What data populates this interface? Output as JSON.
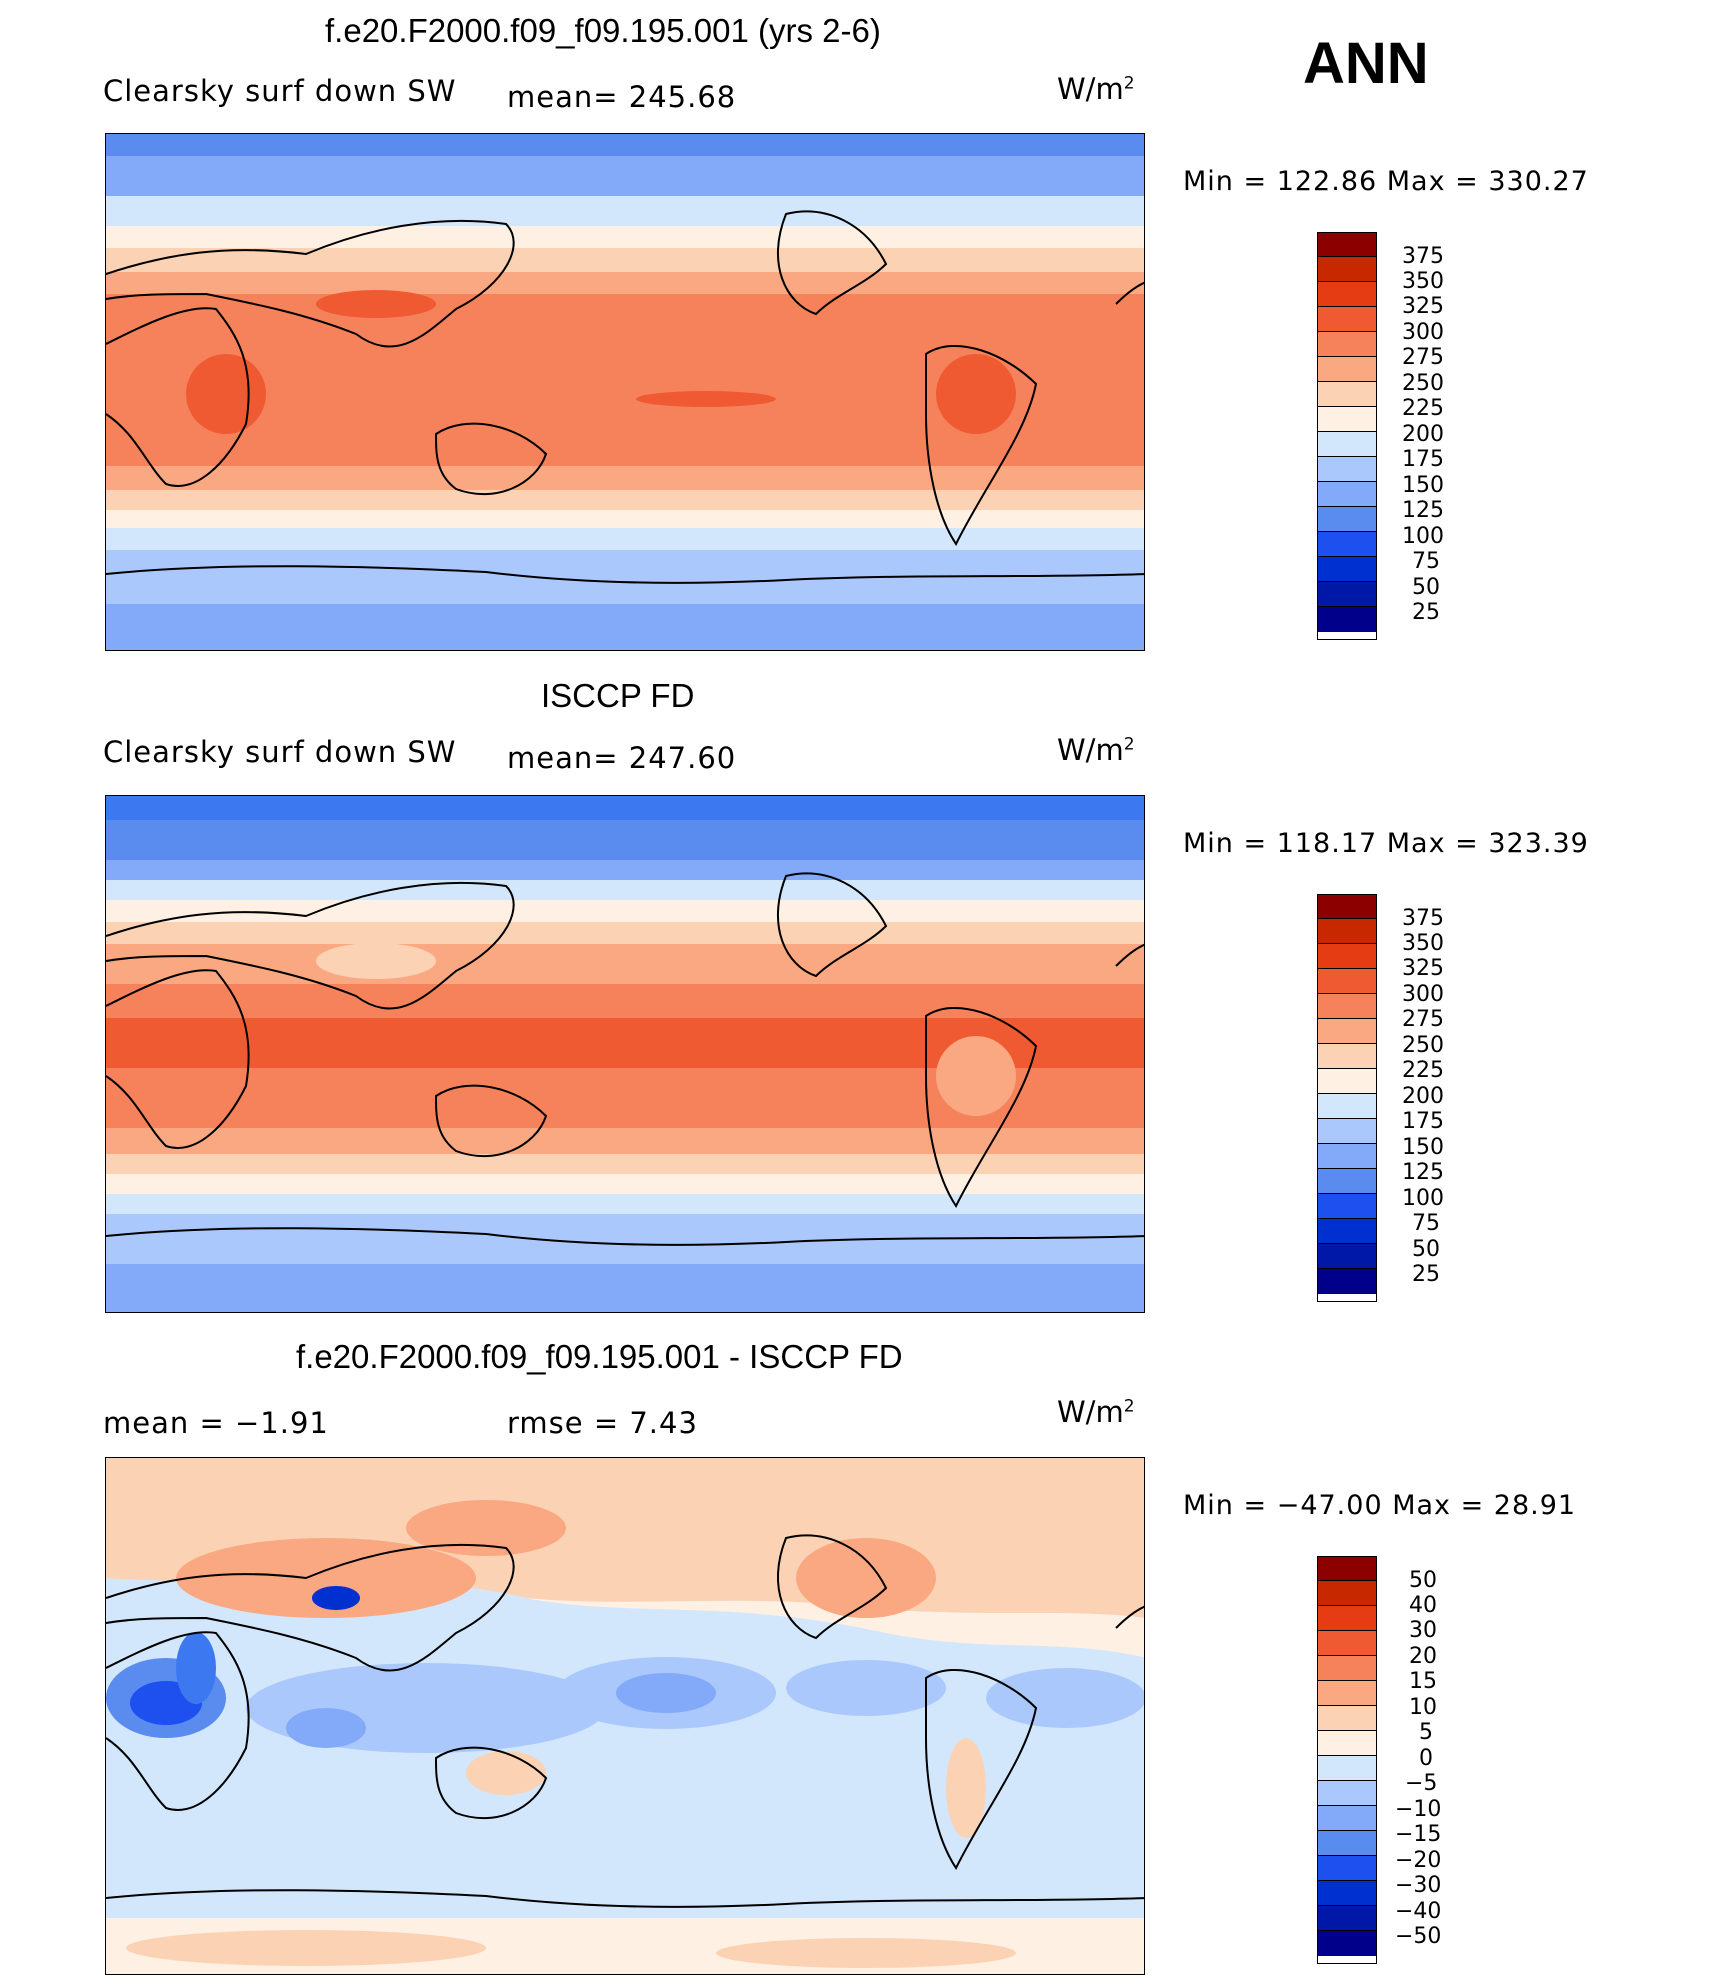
{
  "season": "ANN",
  "colors": {
    "abs_scale": [
      "#00008b",
      "#0018a8",
      "#0030d0",
      "#1e50f0",
      "#3c78f0",
      "#5a8cf0",
      "#82aaf8",
      "#aac8fc",
      "#d2e6fc",
      "#fff0e4",
      "#fcd2b4",
      "#faa882",
      "#f5825a",
      "#f05a32",
      "#e63c14",
      "#c82800",
      "#8c0000"
    ],
    "diff_scale": [
      "#00008b",
      "#0018a8",
      "#0030d0",
      "#1e50f0",
      "#3c78f0",
      "#5a8cf0",
      "#82aaf8",
      "#aac8fc",
      "#d2e6fc",
      "#fff0e4",
      "#fcd2b4",
      "#faa882",
      "#f5825a",
      "#f05a32",
      "#e63c14",
      "#c82800",
      "#8c0000"
    ],
    "land_outline": "#000000"
  },
  "panels": [
    {
      "title": "f.e20.F2000.f09_f09.195.001 (yrs 2-6)",
      "left_label": "Clearsky surf down SW",
      "center_label": "mean= 245.68",
      "units": "W/m",
      "units_sup": "2",
      "minmax": "Min = 122.86 Max = 330.27",
      "colorbar_labels": [
        "375",
        "350",
        "325",
        "300",
        "275",
        "250",
        "225",
        "200",
        "175",
        "150",
        "125",
        "100",
        "75",
        "50",
        "25"
      ]
    },
    {
      "title": "ISCCP FD",
      "left_label": "Clearsky surf down SW",
      "center_label": "mean= 247.60",
      "units": "W/m",
      "units_sup": "2",
      "minmax": "Min = 118.17 Max = 323.39",
      "colorbar_labels": [
        "375",
        "350",
        "325",
        "300",
        "275",
        "250",
        "225",
        "200",
        "175",
        "150",
        "125",
        "100",
        "75",
        "50",
        "25"
      ]
    },
    {
      "title": "f.e20.F2000.f09_f09.195.001 - ISCCP FD",
      "left_label": "mean =   −1.91",
      "center_label": "rmse =    7.43",
      "units": "W/m",
      "units_sup": "2",
      "minmax": "Min = −47.00 Max =  28.91",
      "colorbar_labels": [
        "50",
        "40",
        "30",
        "20",
        "15",
        "10",
        "5",
        "0",
        "−5",
        "−10",
        "−15",
        "−20",
        "−30",
        "−40",
        "−50"
      ]
    }
  ]
}
